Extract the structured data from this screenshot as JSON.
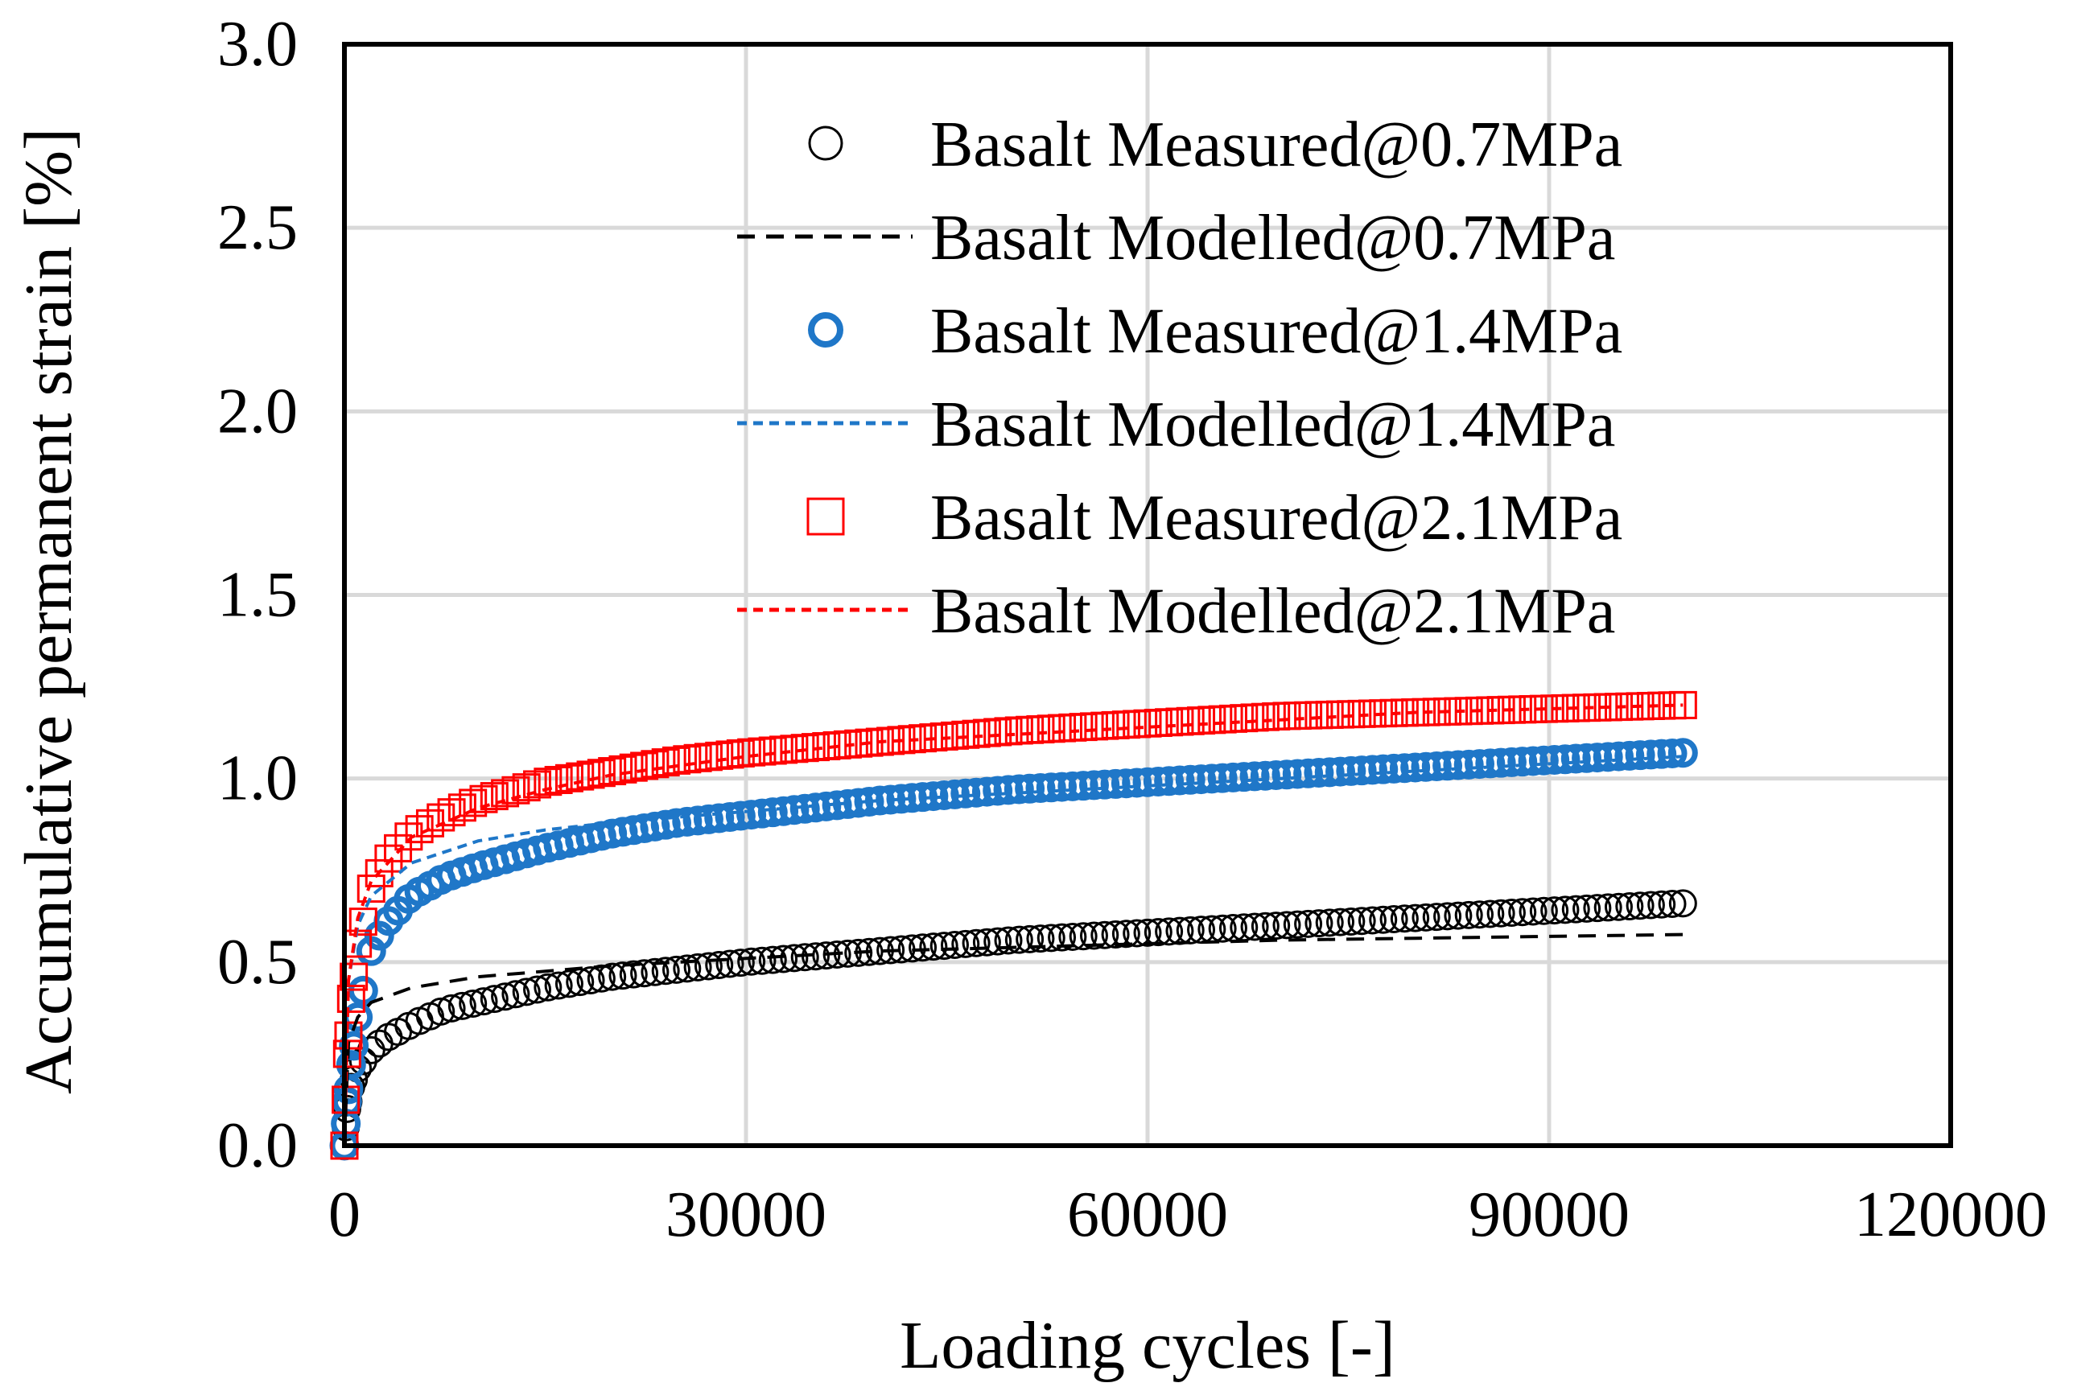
{
  "chart_data": {
    "type": "scatter",
    "title": "",
    "xlabel": "Loading cycles [-]",
    "ylabel": "Accumulative permanent strain [%]",
    "xlim": [
      0,
      120000
    ],
    "ylim": [
      0,
      3.0
    ],
    "xticks": [
      0,
      30000,
      60000,
      90000,
      120000
    ],
    "xtick_labels": [
      "0",
      "30000",
      "60000",
      "90000",
      "120000"
    ],
    "yticks": [
      0,
      0.5,
      1.0,
      1.5,
      2.0,
      2.5,
      3.0
    ],
    "ytick_labels": [
      "0.0",
      "0.5",
      "1.0",
      "1.5",
      "2.0",
      "2.5",
      "3.0"
    ],
    "grid": true,
    "legend_position": "top-center",
    "series": [
      {
        "name": "Basalt Measured@0.7MPa",
        "kind": "marker",
        "marker": "circle",
        "color": "#000000",
        "x": [
          0,
          200,
          500,
          1000,
          2000,
          3000,
          5000,
          7500,
          10000,
          15000,
          20000,
          25000,
          30000,
          40000,
          50000,
          60000,
          70000,
          80000,
          90000,
          100000
        ],
        "y": [
          0.0,
          0.1,
          0.16,
          0.21,
          0.26,
          0.29,
          0.33,
          0.37,
          0.39,
          0.43,
          0.46,
          0.48,
          0.5,
          0.53,
          0.56,
          0.58,
          0.6,
          0.62,
          0.64,
          0.66
        ]
      },
      {
        "name": "Basalt Modelled@0.7MPa",
        "kind": "line",
        "dash": "black-dash",
        "color": "#000000",
        "x": [
          0,
          300,
          1000,
          2000,
          5000,
          10000,
          20000,
          30000,
          40000,
          50000,
          60000,
          70000,
          80000,
          90000,
          100000
        ],
        "y": [
          0.0,
          0.28,
          0.35,
          0.39,
          0.43,
          0.46,
          0.49,
          0.51,
          0.53,
          0.54,
          0.55,
          0.56,
          0.565,
          0.57,
          0.575
        ]
      },
      {
        "name": "Basalt Measured@1.4MPa",
        "kind": "marker",
        "marker": "circle-bold",
        "color": "#1f77c8",
        "x": [
          0,
          200,
          500,
          1000,
          2000,
          3000,
          5000,
          7500,
          10000,
          15000,
          20000,
          25000,
          30000,
          40000,
          50000,
          60000,
          70000,
          80000,
          90000,
          100000
        ],
        "y": [
          0.0,
          0.12,
          0.22,
          0.35,
          0.53,
          0.6,
          0.68,
          0.73,
          0.76,
          0.81,
          0.85,
          0.88,
          0.9,
          0.94,
          0.97,
          0.99,
          1.01,
          1.03,
          1.05,
          1.07
        ]
      },
      {
        "name": "Basalt Modelled@1.4MPa",
        "kind": "line",
        "dash": "blue-dash",
        "color": "#1f77c8",
        "x": [
          0,
          300,
          1000,
          2000,
          5000,
          10000,
          15000,
          20000,
          30000,
          40000,
          50000,
          60000,
          70000,
          80000,
          90000,
          100000
        ],
        "y": [
          0.0,
          0.45,
          0.6,
          0.68,
          0.77,
          0.83,
          0.86,
          0.88,
          0.91,
          0.94,
          0.96,
          0.98,
          1.0,
          1.02,
          1.04,
          1.06
        ]
      },
      {
        "name": "Basalt Measured@2.1MPa",
        "kind": "marker",
        "marker": "square",
        "color": "#ff0000",
        "x": [
          0,
          200,
          500,
          1000,
          2000,
          3000,
          5000,
          7500,
          10000,
          15000,
          20000,
          25000,
          30000,
          40000,
          50000,
          60000,
          70000,
          80000,
          90000,
          100000
        ],
        "y": [
          0.0,
          0.25,
          0.4,
          0.55,
          0.7,
          0.77,
          0.85,
          0.9,
          0.94,
          0.99,
          1.02,
          1.05,
          1.07,
          1.1,
          1.13,
          1.15,
          1.17,
          1.18,
          1.19,
          1.2
        ]
      },
      {
        "name": "Basalt Modelled@2.1MPa",
        "kind": "line",
        "dash": "red-dash",
        "color": "#ff0000",
        "x": [
          0,
          300,
          1000,
          2000,
          5000,
          10000,
          15000,
          20000,
          30000,
          40000,
          50000,
          60000,
          70000,
          80000,
          90000,
          100000
        ],
        "y": [
          0.0,
          0.45,
          0.62,
          0.72,
          0.84,
          0.92,
          0.97,
          1.01,
          1.06,
          1.1,
          1.12,
          1.14,
          1.16,
          1.18,
          1.19,
          1.2
        ]
      }
    ]
  }
}
